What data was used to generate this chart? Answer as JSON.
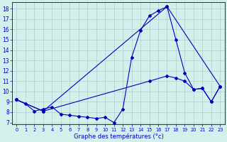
{
  "title": "Graphe des températures (°c)",
  "background_color": "#d4f0ec",
  "grid_color": "#aacfcc",
  "line_color": "#0000bb",
  "ylim": [
    6.8,
    18.6
  ],
  "yticks": [
    7,
    8,
    9,
    10,
    11,
    12,
    13,
    14,
    15,
    16,
    17,
    18
  ],
  "xlim": [
    -0.5,
    23.5
  ],
  "line1_x": [
    0,
    1,
    2,
    3,
    4,
    5,
    6,
    7,
    8,
    9,
    10,
    11,
    12,
    13,
    14,
    15,
    16,
    17,
    18,
    19,
    20,
    21,
    22,
    23
  ],
  "line1_y": [
    9.2,
    8.8,
    8.1,
    8.3,
    8.5,
    7.8,
    7.7,
    7.6,
    7.5,
    7.4,
    7.5,
    7.0,
    8.3,
    13.3,
    15.9,
    17.3,
    17.8,
    18.2,
    15.0,
    11.8,
    10.2,
    10.3,
    9.0,
    10.5
  ],
  "line2_x": [
    0,
    3,
    17,
    23
  ],
  "line2_y": [
    9.2,
    8.1,
    18.2,
    10.5
  ],
  "line3_x": [
    0,
    3,
    15,
    17,
    18,
    19,
    20,
    21,
    22,
    23
  ],
  "line3_y": [
    9.2,
    8.1,
    11.0,
    11.5,
    11.3,
    11.0,
    10.2,
    10.3,
    9.0,
    10.5
  ],
  "x_labels": [
    "0",
    "1",
    "2",
    "3",
    "4",
    "5",
    "6",
    "7",
    "8",
    "9",
    "10",
    "11",
    "12",
    "13",
    "14",
    "15",
    "16",
    "17",
    "18",
    "19",
    "20",
    "21",
    "22",
    "23"
  ]
}
